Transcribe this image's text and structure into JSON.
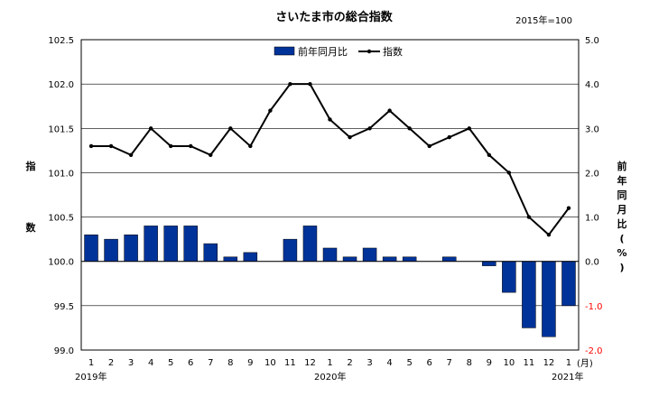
{
  "chart_data": {
    "type": "bar+line",
    "title": "さいたま市の総合指数",
    "base_note": "2015年=100",
    "categories": [
      "1",
      "2",
      "3",
      "4",
      "5",
      "6",
      "7",
      "8",
      "9",
      "10",
      "11",
      "12",
      "1",
      "2",
      "3",
      "4",
      "5",
      "6",
      "7",
      "8",
      "9",
      "10",
      "11",
      "12",
      "1"
    ],
    "year_labels": [
      "2019年",
      "2020年",
      "2021年"
    ],
    "month_unit": "(月)",
    "series": [
      {
        "name": "前年同月比",
        "type": "bar",
        "axis": "right",
        "color": "#003399",
        "values": [
          0.6,
          0.5,
          0.6,
          0.8,
          0.8,
          0.8,
          0.4,
          0.1,
          0.2,
          0.0,
          0.5,
          0.8,
          0.3,
          0.1,
          0.3,
          0.1,
          0.1,
          0.0,
          0.1,
          0.0,
          -0.1,
          -0.7,
          -1.5,
          -1.7,
          -1.0
        ]
      },
      {
        "name": "指数",
        "type": "line",
        "axis": "left",
        "color": "#000000",
        "values": [
          101.3,
          101.3,
          101.2,
          101.5,
          101.3,
          101.3,
          101.2,
          101.5,
          101.3,
          101.7,
          102.0,
          102.0,
          101.6,
          101.4,
          101.5,
          101.7,
          101.5,
          101.3,
          101.4,
          101.5,
          101.2,
          101.0,
          100.5,
          100.3,
          100.6
        ]
      }
    ],
    "left_axis": {
      "label": "指数",
      "ylim": [
        99.0,
        102.5
      ],
      "ticks": [
        "99.0",
        "99.5",
        "100.0",
        "100.5",
        "101.0",
        "101.5",
        "102.0",
        "102.5"
      ]
    },
    "right_axis": {
      "label": "前年同月比(%)",
      "ylim": [
        -2.0,
        5.0
      ],
      "ticks": [
        "-2.0",
        "-1.0",
        "0.0",
        "1.0",
        "2.0",
        "3.0",
        "4.0",
        "5.0"
      ],
      "negative_color": "#ff0000"
    },
    "grid": true,
    "legend": "top-center"
  }
}
